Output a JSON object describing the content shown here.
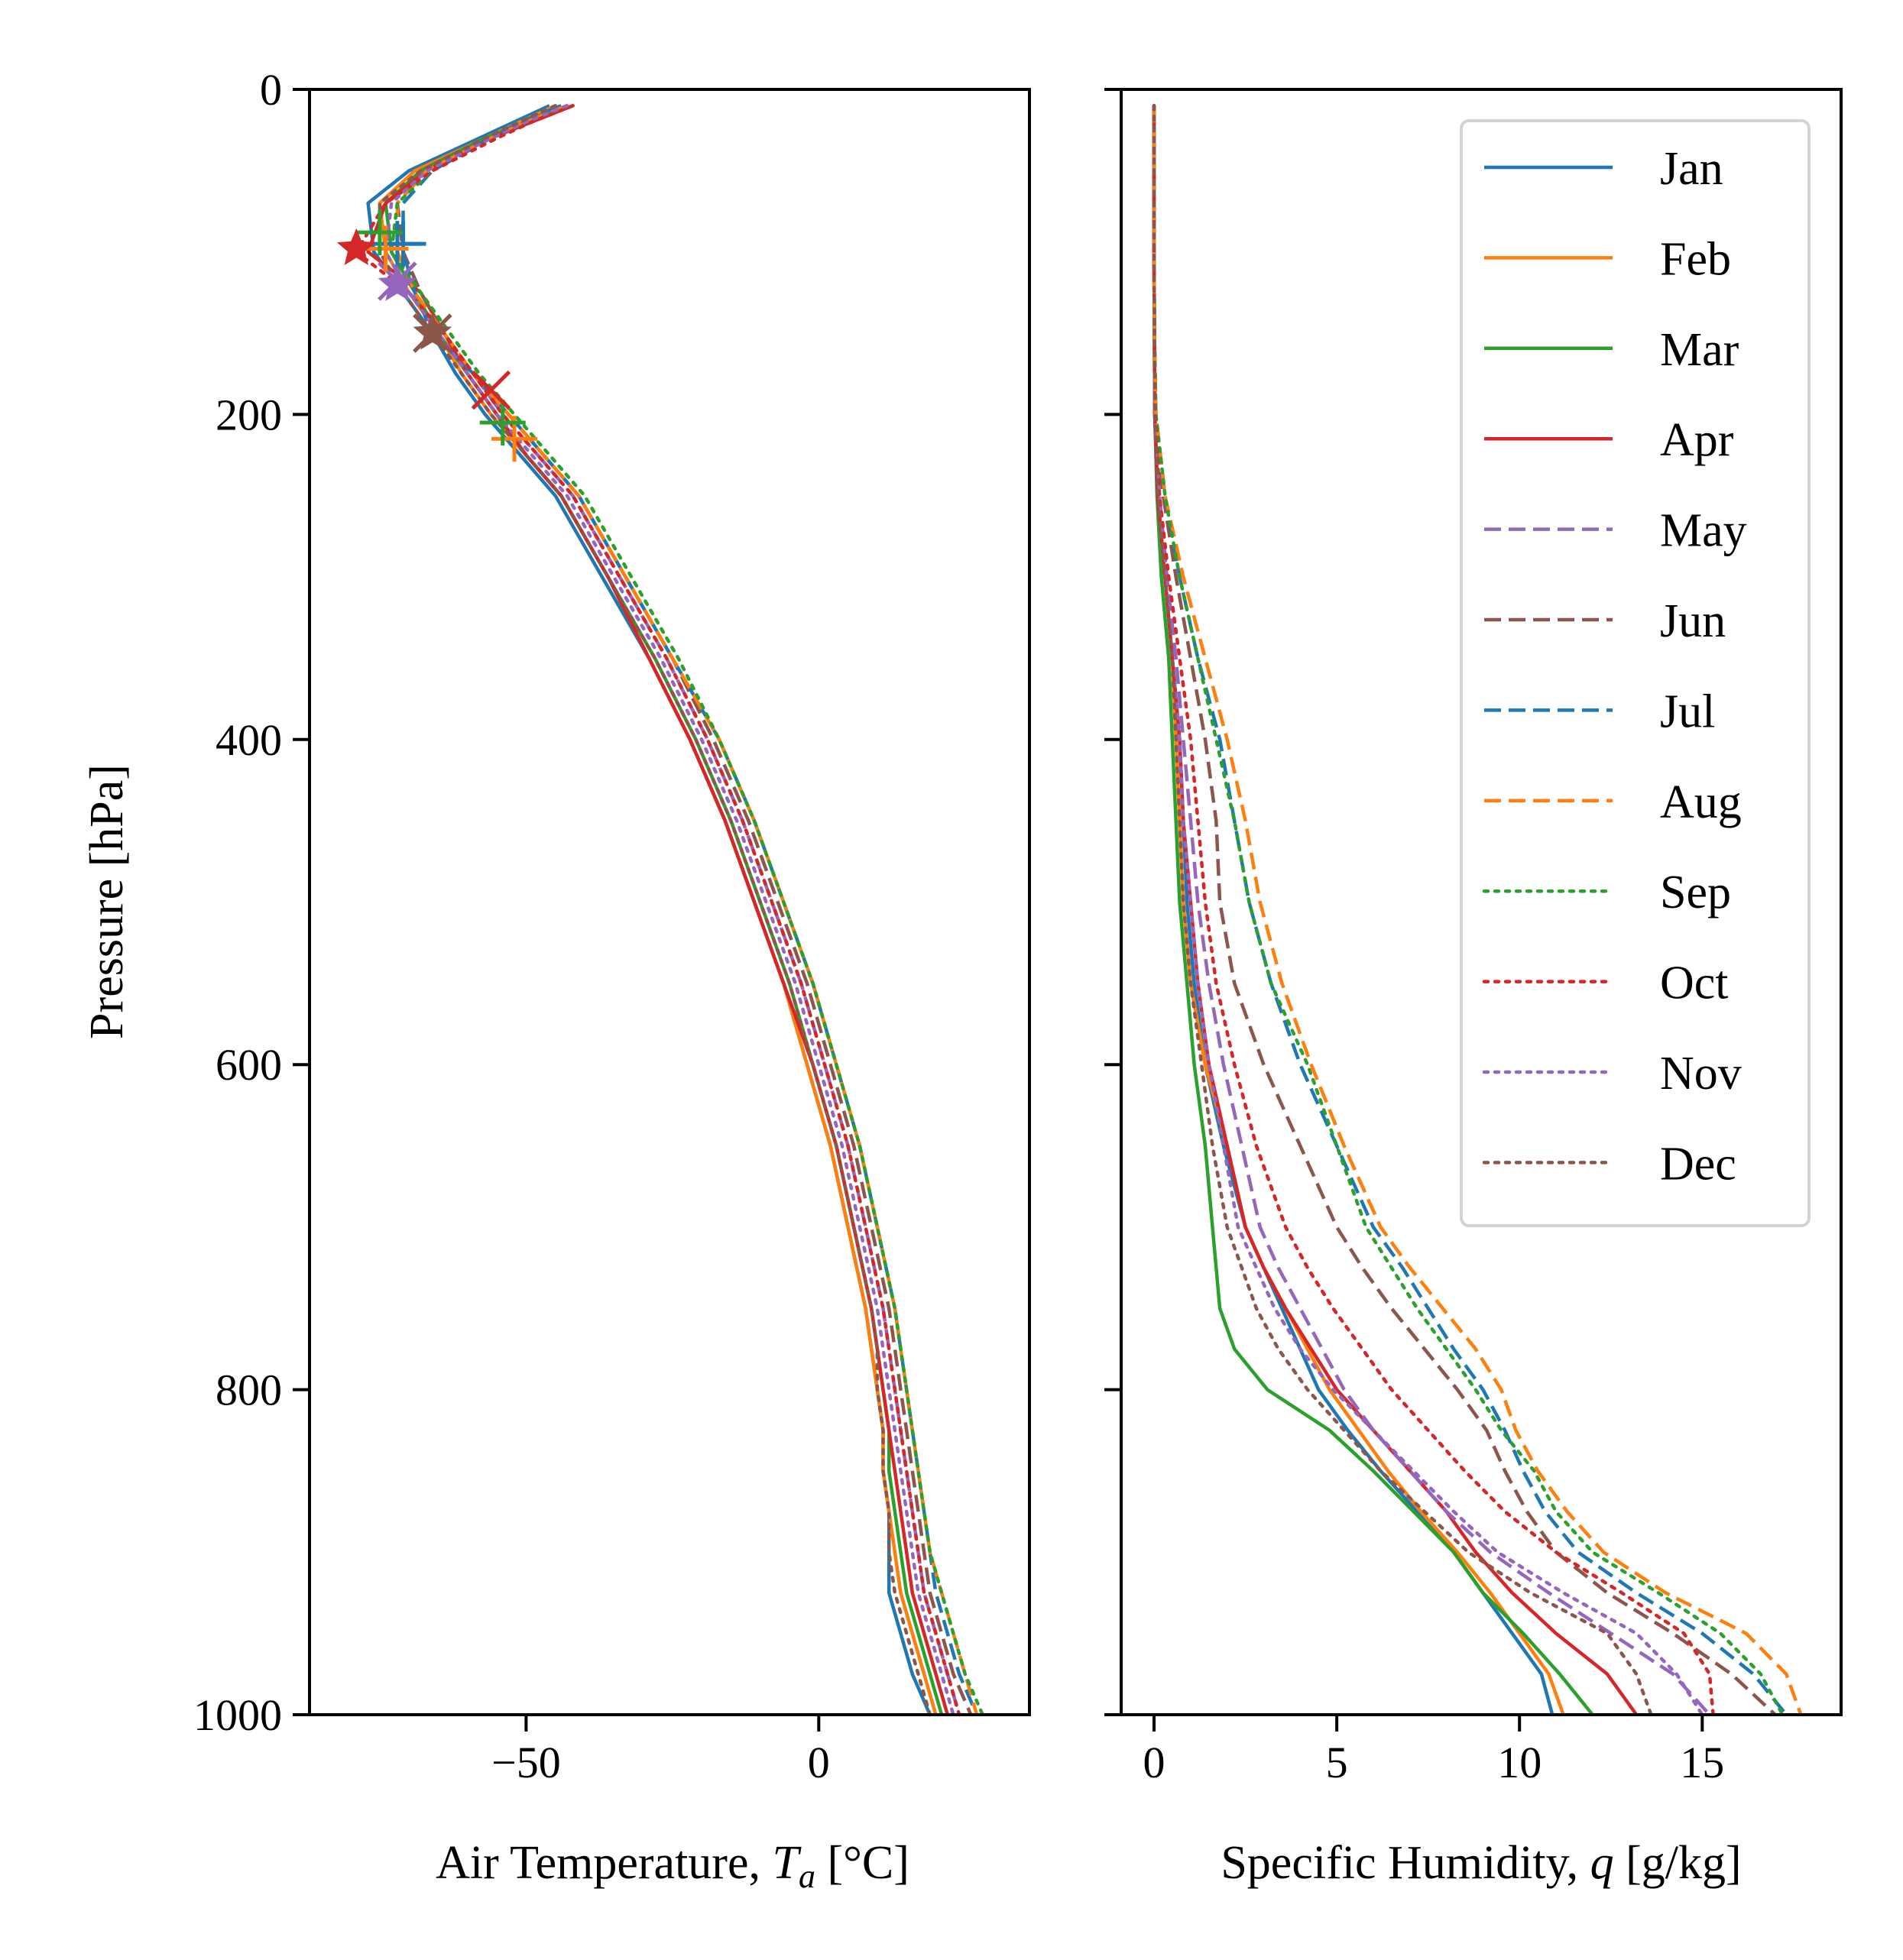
{
  "chart_data": [
    {
      "type": "line",
      "panel": "left",
      "xlabel": "Air Temperature, T_a [°C]",
      "xlabel_parts": {
        "prefix": "Air Temperature, ",
        "var": "T",
        "sub": "a",
        "suffix": " [°C]"
      },
      "ylabel": "Pressure [hPa]",
      "xlim": [
        -87,
        36
      ],
      "ylim": [
        1000,
        0
      ],
      "xticks": [
        -50,
        0
      ],
      "xtick_labels": [
        "−50",
        "0"
      ],
      "yticks": [
        0,
        200,
        400,
        600,
        800,
        1000
      ],
      "ytick_labels": [
        "0",
        "200",
        "400",
        "600",
        "800",
        "1000"
      ],
      "grid": false,
      "pressure_levels": [
        10,
        20,
        30,
        50,
        70,
        100,
        125,
        150,
        175,
        200,
        225,
        250,
        300,
        350,
        400,
        450,
        500,
        550,
        600,
        650,
        700,
        750,
        775,
        800,
        825,
        850,
        875,
        900,
        925,
        950,
        975,
        1000
      ],
      "series": [
        {
          "name": "Jan",
          "values": [
            -46,
            -52,
            -58,
            -70,
            -77,
            -76,
            -71,
            -66,
            -62,
            -57,
            -51,
            -45,
            -37,
            -29,
            -22,
            -16,
            -11,
            -6,
            -2,
            2,
            5,
            8,
            9,
            10,
            11,
            11,
            12,
            12,
            12,
            14,
            16,
            19
          ]
        },
        {
          "name": "Feb",
          "values": [
            -45,
            -51,
            -57,
            -69,
            -75,
            -74,
            -70,
            -65,
            -61,
            -56,
            -50,
            -44,
            -36,
            -29,
            -22,
            -16,
            -11,
            -6,
            -2,
            2,
            5,
            8,
            9,
            10,
            11,
            11,
            12,
            13,
            14,
            16,
            18,
            20
          ]
        },
        {
          "name": "Mar",
          "values": [
            -44,
            -50,
            -57,
            -68,
            -74,
            -73,
            -69,
            -65,
            -60,
            -55,
            -50,
            -44,
            -36,
            -28,
            -21,
            -15,
            -10,
            -5,
            -1,
            3,
            6,
            9,
            10,
            11,
            12,
            12,
            13,
            14,
            15,
            17,
            19,
            21
          ]
        },
        {
          "name": "Apr",
          "values": [
            -42,
            -49,
            -56,
            -67,
            -74,
            -77,
            -68,
            -64,
            -60,
            -55,
            -50,
            -44,
            -36,
            -29,
            -22,
            -16,
            -11,
            -6,
            -1,
            3,
            6,
            9,
            10,
            11,
            12,
            13,
            14,
            15,
            16,
            18,
            20,
            22
          ]
        },
        {
          "name": "May",
          "values": [
            -43,
            -50,
            -56,
            -67,
            -72,
            -71,
            -68,
            -64,
            -59,
            -54,
            -48,
            -42,
            -34,
            -26,
            -19,
            -13,
            -8,
            -3,
            1,
            5,
            8,
            11,
            12,
            13,
            14,
            15,
            16,
            17,
            18,
            20,
            22,
            24
          ]
        },
        {
          "name": "Jun",
          "values": [
            -43,
            -50,
            -56,
            -67,
            -72,
            -71,
            -68,
            -64,
            -59,
            -53,
            -47,
            -41,
            -33,
            -25,
            -18,
            -12,
            -7,
            -2,
            2,
            6,
            9,
            12,
            13,
            14,
            15,
            16,
            17,
            18,
            19,
            21,
            23,
            26
          ]
        },
        {
          "name": "Jul",
          "values": [
            -44,
            -51,
            -56,
            -66,
            -71,
            -71,
            -69,
            -66,
            -59,
            -53,
            -47,
            -41,
            -33,
            -25,
            -17,
            -11,
            -6,
            -1,
            3,
            7,
            10,
            13,
            14,
            15,
            16,
            17,
            18,
            19,
            20,
            22,
            24,
            27
          ]
        },
        {
          "name": "Aug",
          "values": [
            -43,
            -50,
            -56,
            -67,
            -72,
            -72,
            -69,
            -64,
            -59,
            -53,
            -47,
            -41,
            -33,
            -25,
            -17,
            -11,
            -6,
            -1,
            3,
            7,
            10,
            13,
            14,
            15,
            16,
            17,
            18,
            19,
            21,
            23,
            25,
            27
          ]
        },
        {
          "name": "Sep",
          "values": [
            -42,
            -49,
            -55,
            -66,
            -72,
            -73,
            -68,
            -63,
            -58,
            -52,
            -46,
            -40,
            -32,
            -24,
            -17,
            -11,
            -6,
            -1,
            3,
            7,
            10,
            13,
            14,
            15,
            16,
            17,
            18,
            19,
            21,
            23,
            25,
            28
          ]
        },
        {
          "name": "Oct",
          "values": [
            -42,
            -49,
            -55,
            -66,
            -74,
            -79,
            -70,
            -64,
            -59,
            -54,
            -48,
            -42,
            -34,
            -26,
            -19,
            -13,
            -8,
            -3,
            1,
            5,
            8,
            11,
            12,
            13,
            14,
            15,
            16,
            17,
            18,
            20,
            22,
            24
          ]
        },
        {
          "name": "Nov",
          "values": [
            -43,
            -50,
            -56,
            -67,
            -73,
            -74,
            -70,
            -65,
            -60,
            -55,
            -49,
            -43,
            -35,
            -27,
            -20,
            -14,
            -9,
            -4,
            0,
            4,
            7,
            10,
            11,
            12,
            13,
            14,
            15,
            16,
            17,
            19,
            21,
            23
          ]
        },
        {
          "name": "Dec",
          "values": [
            -45,
            -51,
            -57,
            -68,
            -75,
            -75,
            -71,
            -66,
            -61,
            -56,
            -50,
            -44,
            -36,
            -28,
            -21,
            -15,
            -10,
            -5,
            -1,
            3,
            6,
            9,
            10,
            10,
            11,
            11,
            12,
            12,
            13,
            15,
            17,
            19
          ]
        }
      ],
      "tropopause_markers": [
        {
          "series": "Jan",
          "marker": "+",
          "temperature": -72,
          "pressure": 95
        },
        {
          "series": "Feb",
          "marker": "+",
          "temperature": -52,
          "pressure": 215
        },
        {
          "series": "Mar",
          "marker": "+",
          "temperature": -54,
          "pressure": 205
        },
        {
          "series": "Apr",
          "marker": "x",
          "temperature": -56,
          "pressure": 185
        },
        {
          "series": "May",
          "marker": "x",
          "temperature": -72,
          "pressure": 118
        },
        {
          "series": "Jun",
          "marker": "x",
          "temperature": -66,
          "pressure": 150
        },
        {
          "series": "Jul",
          "marker": "+",
          "temperature": -71,
          "pressure": 95
        },
        {
          "series": "Aug",
          "marker": "+",
          "temperature": -74,
          "pressure": 98
        },
        {
          "series": "Sep",
          "marker": "+",
          "temperature": -75,
          "pressure": 88
        },
        {
          "series": "Oct",
          "marker": "*",
          "temperature": -79,
          "pressure": 98
        },
        {
          "series": "Nov",
          "marker": "*",
          "temperature": -72,
          "pressure": 120
        },
        {
          "series": "Dec",
          "marker": "*",
          "temperature": -66,
          "pressure": 150
        }
      ]
    },
    {
      "type": "line",
      "panel": "right",
      "xlabel": "Specific Humidity, q [g/kg]",
      "xlabel_parts": {
        "prefix": "Specific Humidity, ",
        "var": "q",
        "suffix": " [g/kg]"
      },
      "xlim": [
        -0.9,
        18.8
      ],
      "ylim": [
        1000,
        0
      ],
      "xticks": [
        0,
        5,
        10,
        15
      ],
      "xtick_labels": [
        "0",
        "5",
        "10",
        "15"
      ],
      "grid": false,
      "legend": {
        "placement": "top-right"
      },
      "pressure_levels": [
        10,
        50,
        100,
        150,
        200,
        250,
        300,
        350,
        400,
        450,
        500,
        550,
        600,
        650,
        700,
        725,
        750,
        775,
        800,
        825,
        850,
        875,
        900,
        925,
        950,
        975,
        1000
      ],
      "series": [
        {
          "name": "Jan",
          "values": [
            0,
            0,
            0,
            0.01,
            0.02,
            0.1,
            0.3,
            0.5,
            0.7,
            0.8,
            0.9,
            1.1,
            1.4,
            1.9,
            2.5,
            3.0,
            3.5,
            4.0,
            4.5,
            5.3,
            6.2,
            7.2,
            8.2,
            9.0,
            9.8,
            10.6,
            10.9
          ]
        },
        {
          "name": "Feb",
          "values": [
            0,
            0,
            0,
            0.01,
            0.02,
            0.1,
            0.3,
            0.5,
            0.6,
            0.7,
            0.8,
            1.0,
            1.4,
            2.0,
            2.5,
            3.0,
            3.6,
            4.2,
            4.8,
            5.6,
            6.4,
            7.3,
            8.3,
            9.2,
            10.0,
            10.8,
            11.2
          ]
        },
        {
          "name": "Mar",
          "values": [
            0,
            0,
            0,
            0.01,
            0.02,
            0.08,
            0.2,
            0.4,
            0.5,
            0.6,
            0.7,
            0.9,
            1.1,
            1.4,
            1.6,
            1.7,
            1.8,
            2.2,
            3.1,
            4.8,
            6.0,
            7.1,
            8.2,
            9.0,
            10.1,
            11.1,
            12.0
          ]
        },
        {
          "name": "Apr",
          "values": [
            0,
            0,
            0,
            0.01,
            0.02,
            0.1,
            0.3,
            0.5,
            0.7,
            0.8,
            1.0,
            1.2,
            1.5,
            2.0,
            2.5,
            3.0,
            3.6,
            4.3,
            5.0,
            6.0,
            7.0,
            8.0,
            8.8,
            9.8,
            11.0,
            12.4,
            13.2
          ]
        },
        {
          "name": "May",
          "values": [
            0,
            0,
            0,
            0.01,
            0.03,
            0.15,
            0.35,
            0.6,
            0.8,
            1.0,
            1.2,
            1.5,
            1.9,
            2.4,
            2.9,
            3.4,
            4.0,
            4.6,
            5.2,
            6.0,
            7.0,
            8.0,
            9.2,
            10.8,
            12.5,
            14.2,
            15.2
          ]
        },
        {
          "name": "Jun",
          "values": [
            0,
            0,
            0,
            0.01,
            0.05,
            0.25,
            0.6,
            1.0,
            1.4,
            1.7,
            1.8,
            2.2,
            3.0,
            4.0,
            5.0,
            5.7,
            6.5,
            7.4,
            8.3,
            9.1,
            9.6,
            10.2,
            11.0,
            12.4,
            14.2,
            15.8,
            17.0
          ]
        },
        {
          "name": "Jul",
          "values": [
            0,
            0,
            0,
            0.01,
            0.05,
            0.3,
            0.7,
            1.2,
            1.8,
            2.2,
            2.6,
            3.2,
            4.0,
            5.0,
            6.0,
            6.8,
            7.5,
            8.2,
            9.0,
            9.6,
            10.1,
            10.7,
            11.6,
            13.2,
            15.0,
            16.4,
            17.3
          ]
        },
        {
          "name": "Aug",
          "values": [
            0,
            0,
            0,
            0.01,
            0.05,
            0.3,
            0.8,
            1.4,
            2.0,
            2.5,
            2.9,
            3.5,
            4.3,
            5.2,
            6.2,
            7.0,
            7.9,
            8.8,
            9.5,
            9.9,
            10.5,
            11.3,
            12.3,
            14.0,
            16.2,
            17.3,
            17.7
          ]
        },
        {
          "name": "Sep",
          "values": [
            0,
            0,
            0,
            0.01,
            0.05,
            0.3,
            0.7,
            1.2,
            1.7,
            2.2,
            2.6,
            3.2,
            4.2,
            5.0,
            5.8,
            6.5,
            7.2,
            8.0,
            8.8,
            9.5,
            10.4,
            11.0,
            12.0,
            13.8,
            15.5,
            16.6,
            17.2
          ]
        },
        {
          "name": "Oct",
          "values": [
            0,
            0,
            0,
            0.01,
            0.03,
            0.15,
            0.4,
            0.7,
            1.0,
            1.2,
            1.4,
            1.7,
            2.2,
            2.8,
            3.6,
            4.2,
            4.9,
            5.7,
            6.5,
            7.5,
            8.5,
            9.6,
            11.0,
            12.8,
            14.5,
            15.2,
            15.3
          ]
        },
        {
          "name": "Nov",
          "values": [
            0,
            0,
            0,
            0.01,
            0.02,
            0.1,
            0.3,
            0.5,
            0.7,
            0.8,
            1.0,
            1.2,
            1.5,
            1.9,
            2.3,
            2.8,
            3.3,
            4.0,
            4.9,
            6.0,
            7.1,
            8.2,
            9.4,
            11.2,
            13.2,
            14.3,
            15.0
          ]
        },
        {
          "name": "Dec",
          "values": [
            0,
            0,
            0,
            0.01,
            0.02,
            0.1,
            0.3,
            0.5,
            0.6,
            0.7,
            0.8,
            1.0,
            1.3,
            1.6,
            2.0,
            2.4,
            2.8,
            3.4,
            4.2,
            5.2,
            6.2,
            7.4,
            8.6,
            10.3,
            12.4,
            13.2,
            13.6
          ]
        }
      ]
    }
  ],
  "legend": {
    "entries": [
      {
        "name": "Jan",
        "label": "Jan",
        "color": "#1f77b4",
        "dash": "solid"
      },
      {
        "name": "Feb",
        "label": "Feb",
        "color": "#ff7f0e",
        "dash": "solid"
      },
      {
        "name": "Mar",
        "label": "Mar",
        "color": "#2ca02c",
        "dash": "solid"
      },
      {
        "name": "Apr",
        "label": "Apr",
        "color": "#d62728",
        "dash": "solid"
      },
      {
        "name": "May",
        "label": "May",
        "color": "#9467bd",
        "dash": "dashed"
      },
      {
        "name": "Jun",
        "label": "Jun",
        "color": "#8c564b",
        "dash": "dashed"
      },
      {
        "name": "Jul",
        "label": "Jul",
        "color": "#1f77b4",
        "dash": "dashed"
      },
      {
        "name": "Aug",
        "label": "Aug",
        "color": "#ff7f0e",
        "dash": "dashed"
      },
      {
        "name": "Sep",
        "label": "Sep",
        "color": "#2ca02c",
        "dash": "dotted"
      },
      {
        "name": "Oct",
        "label": "Oct",
        "color": "#d62728",
        "dash": "dotted"
      },
      {
        "name": "Nov",
        "label": "Nov",
        "color": "#9467bd",
        "dash": "dotted"
      },
      {
        "name": "Dec",
        "label": "Dec",
        "color": "#8c564b",
        "dash": "dotted"
      }
    ]
  }
}
